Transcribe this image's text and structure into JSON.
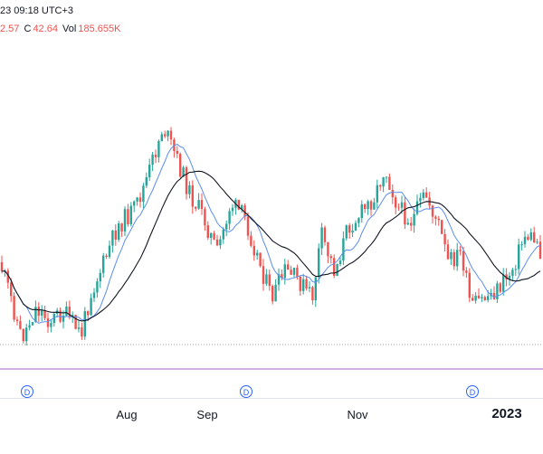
{
  "header": {
    "timestamp": "23 09:18 UTC+3",
    "ohlc_low": "2.57",
    "ohlc_close_label": "C",
    "ohlc_close": "42.64",
    "volume_label": "Vol",
    "volume": "185.655K"
  },
  "badges": [
    "D",
    "D",
    "D"
  ],
  "colors": {
    "up": "#26a69a",
    "down": "#ef5350",
    "ma_fast": "#5b8def",
    "ma_slow": "#131722",
    "purple_line": "#b05dc1",
    "dotted_line": "#a0a0a0"
  },
  "chart_data": {
    "type": "candlestick",
    "x_tick_labels": [
      "Aug",
      "Sep",
      "Nov",
      "2023"
    ],
    "series": [
      {
        "name": "",
        "type": "candles",
        "values": []
      },
      {
        "name": "",
        "type": "moving-average",
        "values": []
      },
      {
        "name": "",
        "type": "moving-average",
        "values": []
      }
    ],
    "grid": false,
    "legend": "none"
  }
}
